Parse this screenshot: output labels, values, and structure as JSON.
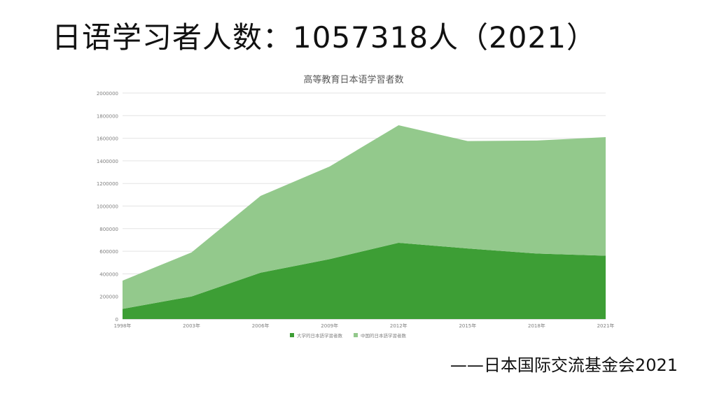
{
  "slide": {
    "title": "日语学习者人数：1057318人（2021）",
    "source": "——日本国际交流基金会2021"
  },
  "chart_data": {
    "type": "area",
    "stacked": true,
    "title": "高等教育日本语学習者数",
    "categories": [
      "1998年",
      "2003年",
      "2006年",
      "2009年",
      "2012年",
      "2015年",
      "2018年",
      "2021年"
    ],
    "series": [
      {
        "name": "大学的日本語学習者数",
        "color": "#3d9e35",
        "values": [
          90000,
          200000,
          410000,
          530000,
          675000,
          625000,
          580000,
          560000
        ]
      },
      {
        "name": "中国的日本語学習者数",
        "color": "#93c98c",
        "values": [
          250000,
          390000,
          680000,
          820000,
          1040000,
          950000,
          1000000,
          1050000
        ]
      }
    ],
    "yticks": [
      "0",
      "200000",
      "400000",
      "600000",
      "800000",
      "1000000",
      "1200000",
      "1400000",
      "1600000",
      "1800000",
      "2000000"
    ],
    "ylim": [
      0,
      2000000
    ],
    "grid": true,
    "legend_position": "bottom"
  }
}
